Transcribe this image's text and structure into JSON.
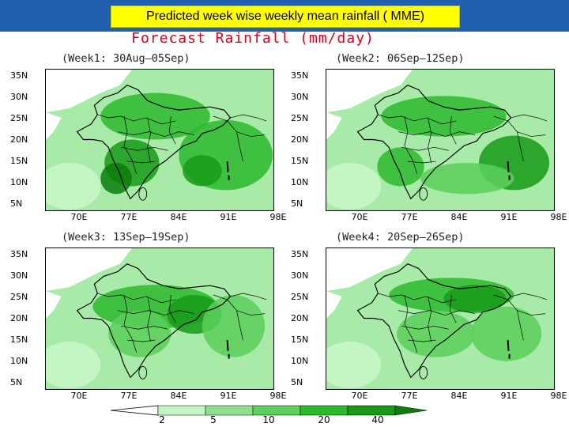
{
  "header": {
    "title": "Predicted week wise weekly mean rainfall  ( MME)"
  },
  "figure": {
    "title": "Forecast Rainfall (mm/day)",
    "lat_labels": [
      "35N",
      "30N",
      "25N",
      "20N",
      "15N",
      "10N",
      "5N"
    ],
    "lon_labels": [
      "70E",
      "77E",
      "84E",
      "91E",
      "98E"
    ],
    "panels": [
      {
        "title": "(Week1: 30Aug—05Sep)"
      },
      {
        "title": "(Week2: 06Sep—12Sep)"
      },
      {
        "title": "(Week3: 13Sep—19Sep)"
      },
      {
        "title": "(Week4: 20Sep—26Sep)"
      }
    ]
  },
  "legend": {
    "unit_icon": "legend-start-mark",
    "labels": [
      "2",
      "5",
      "10",
      "20",
      "40"
    ],
    "colors": [
      "#c4f5c4",
      "#8fdf8f",
      "#5ccf5c",
      "#2eb82e",
      "#179a17",
      "#0b7d0b"
    ]
  }
}
